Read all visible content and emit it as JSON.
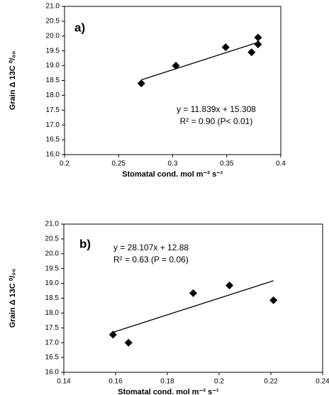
{
  "chart_data": [
    {
      "type": "scatter",
      "panel_label": "a)",
      "equation": "y = 11.839x + 15.308",
      "r_squared": "R² = 0.90 (P< 0.01)",
      "x_label": "Stomatal cond.  mol m⁻² s⁻¹",
      "y_label": "Grain Δ 13C ⁰/₀₀",
      "series": [
        {
          "type": "scatter",
          "color": "#000000",
          "x": [
            0.271,
            0.303,
            0.349,
            0.373,
            0.379,
            0.379
          ],
          "values": [
            18.4,
            19.0,
            19.62,
            19.45,
            19.72,
            19.95
          ]
        },
        {
          "type": "line",
          "color": "#000000",
          "x": [
            0.271,
            0.379
          ],
          "values": [
            18.52,
            19.79
          ]
        }
      ],
      "xlim": [
        0.2,
        0.4
      ],
      "xticks": [
        0.2,
        0.25,
        0.3,
        0.35,
        0.4
      ],
      "ylim": [
        16,
        21
      ],
      "yticks": [
        {
          "value": 16,
          "label": "16.0"
        },
        16.5,
        {
          "value": 17,
          "label": "17.0"
        },
        17.5,
        {
          "value": 18,
          "label": "18.0"
        },
        18.5,
        {
          "value": 19,
          "label": "19.0"
        },
        19.5,
        {
          "value": 20,
          "label": "20.0"
        },
        20.5,
        {
          "value": 21,
          "label": "21.0"
        }
      ]
    },
    {
      "type": "scatter",
      "panel_label": "b)",
      "equation": "y = 28.107x + 12.88",
      "r_squared": "R² = 0.63 (P = 0.06)",
      "x_label": "Stomatal cond. mol m⁻² s⁻¹",
      "y_label": "Grain Δ 13C ⁰/₀₀",
      "series": [
        {
          "type": "scatter",
          "color": "#000000",
          "x": [
            0.159,
            0.165,
            0.19,
            0.204,
            0.221
          ],
          "values": [
            17.27,
            17.0,
            18.67,
            18.93,
            18.43
          ]
        },
        {
          "type": "line",
          "color": "#000000",
          "x": [
            0.159,
            0.221
          ],
          "values": [
            17.35,
            19.09
          ]
        }
      ],
      "xlim": [
        0.14,
        0.24
      ],
      "xticks": [
        0.14,
        0.16,
        0.18,
        0.2,
        0.22,
        0.24
      ],
      "ylim": [
        16,
        21
      ],
      "yticks": [
        {
          "value": 16,
          "label": "16.0"
        },
        16.5,
        {
          "value": 17,
          "label": "17.0"
        },
        17.5,
        {
          "value": 18,
          "label": "18.0"
        },
        18.5,
        {
          "value": 19,
          "label": "19.0"
        },
        19.5,
        {
          "value": 20,
          "label": "20.0"
        },
        20.5,
        {
          "value": 21,
          "label": "21.0"
        }
      ]
    }
  ]
}
